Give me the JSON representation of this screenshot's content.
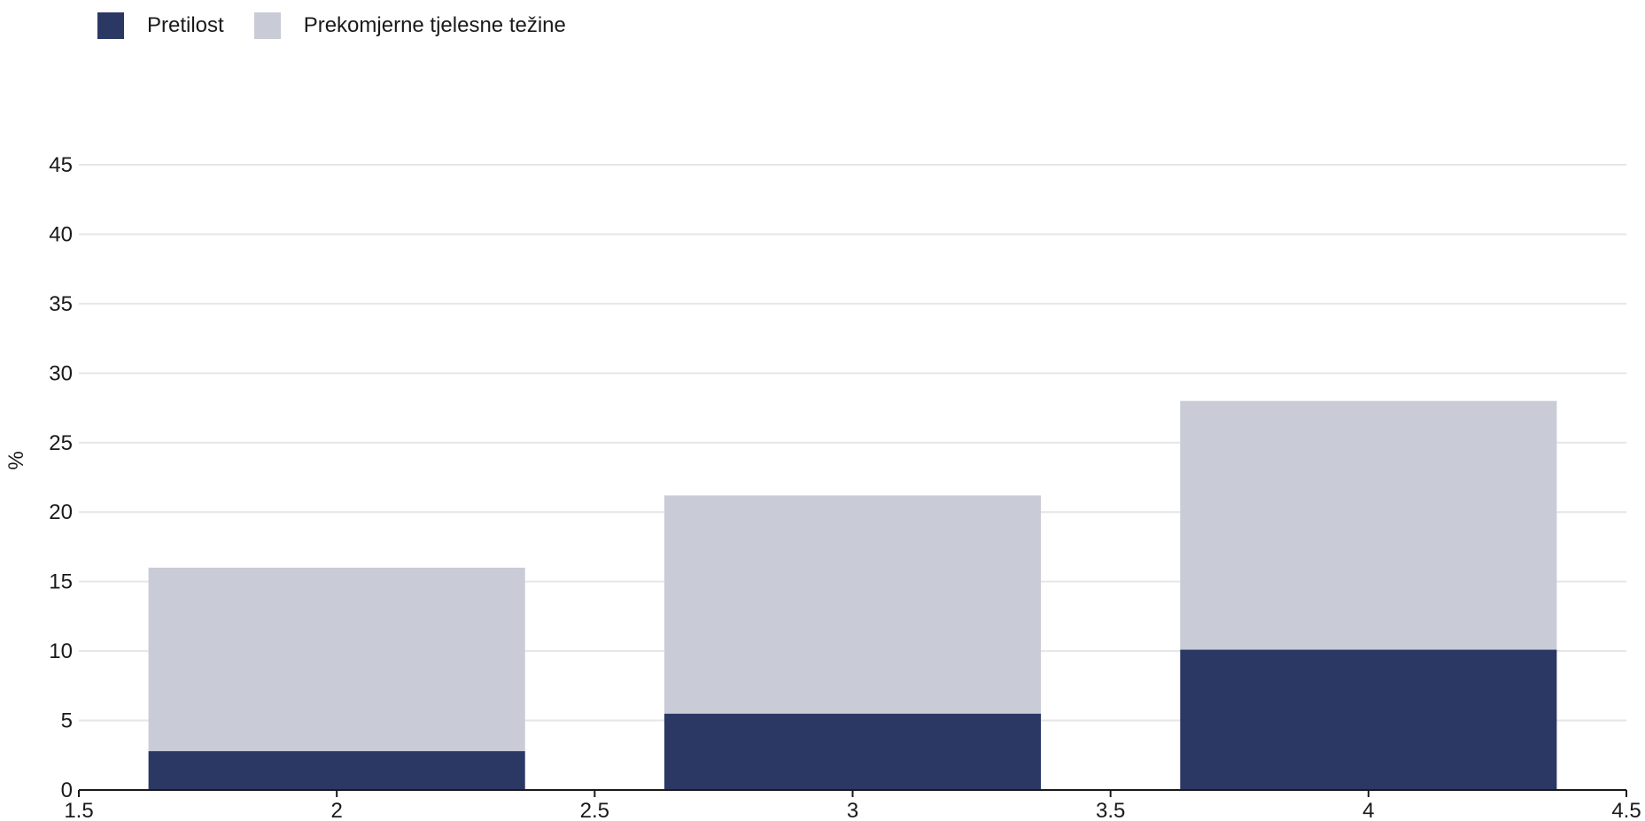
{
  "legend": {
    "items": [
      {
        "label": "Pretilost",
        "color": "#2b3864"
      },
      {
        "label": "Prekomjerne tjelesne težine",
        "color": "#c9cbd7"
      }
    ]
  },
  "chart_data": {
    "type": "bar",
    "stacked": true,
    "x": [
      2,
      3,
      4
    ],
    "series": [
      {
        "name": "Pretilost",
        "values": [
          2.8,
          5.5,
          10.1
        ],
        "color": "#2b3864"
      },
      {
        "name": "Prekomjerne tjelesne težine",
        "values": [
          13.2,
          15.7,
          17.9
        ],
        "color": "#c9cbd7"
      }
    ],
    "ylabel": "%",
    "xlabel": "",
    "xlim": [
      1.5,
      4.5
    ],
    "ylim": [
      0,
      45
    ],
    "xticks": [
      "1.5",
      "2",
      "2.5",
      "3",
      "3.5",
      "4",
      "4.5"
    ],
    "yticks": [
      "0",
      "5",
      "10",
      "15",
      "20",
      "25",
      "30",
      "35",
      "40",
      "45"
    ],
    "grid": true,
    "legend_position": "top-left"
  }
}
